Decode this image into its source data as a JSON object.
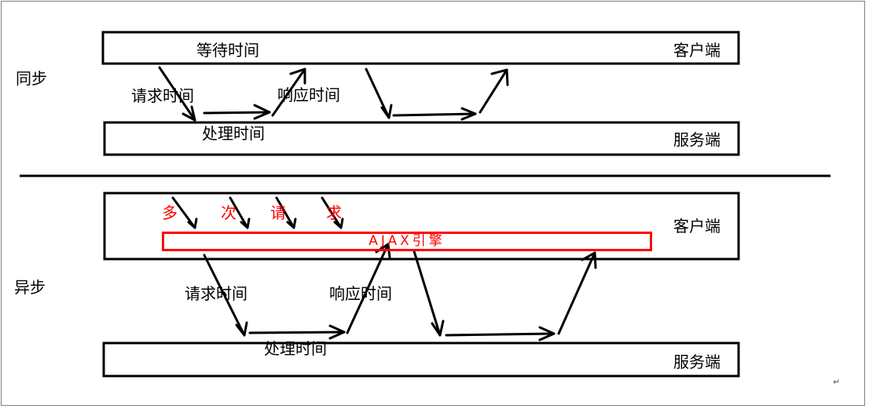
{
  "sync": {
    "section_label": "同步",
    "client_label": "客户端",
    "server_label": "服务端",
    "wait_label": "等待时间",
    "request_label": "请求时间",
    "response_label": "响应时间",
    "process_label": "处理时间"
  },
  "async": {
    "section_label": "异步",
    "client_label": "客户端",
    "server_label": "服务端",
    "multi_request": [
      "多",
      "次",
      "请",
      "求"
    ],
    "engine_label": "AJAX引擎",
    "request_label": "请求时间",
    "response_label": "响应时间",
    "process_label": "处理时间"
  },
  "colors": {
    "line": "#000000",
    "accent": "#ff0000"
  },
  "footer_mark": "↵"
}
